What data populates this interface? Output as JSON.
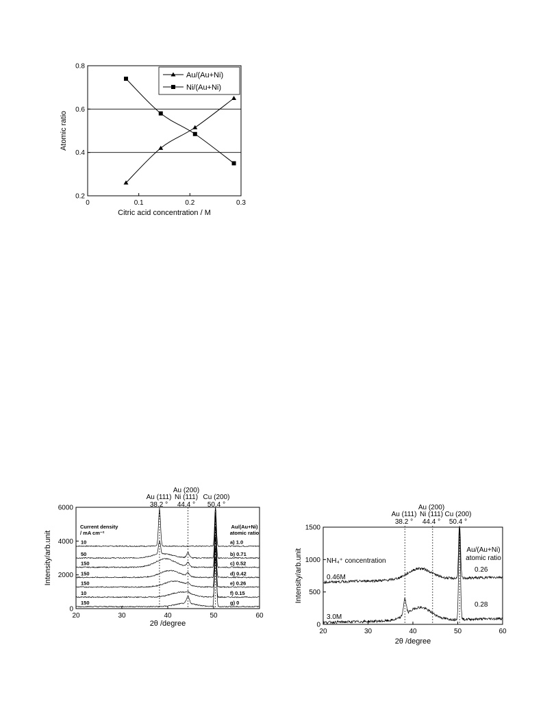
{
  "chart_data": [
    {
      "type": "line",
      "xlabel": "Citric acid concentration / M",
      "ylabel": "Atomic ratio",
      "xlim": [
        0,
        0.3
      ],
      "ylim": [
        0.2,
        0.8
      ],
      "xticks": [
        "0",
        "0.1",
        "0.2",
        "0.3"
      ],
      "yticks": [
        "0.2",
        "0.4",
        "0.6",
        "0.8"
      ],
      "hlines": [
        0.4,
        0.6
      ],
      "legend_position": "top-right",
      "x": [
        0.075,
        0.143,
        0.21,
        0.286
      ],
      "series": [
        {
          "name": "Au/(Au+Ni)",
          "marker": "triangle",
          "values": [
            0.26,
            0.42,
            0.515,
            0.65
          ]
        },
        {
          "name": "Ni/(Au+Ni)",
          "marker": "square",
          "values": [
            0.74,
            0.58,
            0.485,
            0.35
          ]
        }
      ]
    },
    {
      "type": "line",
      "xlabel": "2θ /degree",
      "ylabel": "Intensity/arb.unit",
      "xlim": [
        20,
        60
      ],
      "ylim": [
        0,
        6000
      ],
      "xticks": [
        "20",
        "30",
        "40",
        "50",
        "60"
      ],
      "yticks": [
        "0",
        "2000",
        "4000",
        "6000"
      ],
      "peak_lines": [
        38.2,
        44.4,
        50.4
      ],
      "peak_labels": [
        {
          "name": "Au (111)",
          "angle": "38.2 °"
        },
        {
          "name1": "Au (200)",
          "name2": "Ni (111)",
          "angle": "44.4 °"
        },
        {
          "name": "Cu (200)",
          "angle": "50.4 °"
        }
      ],
      "left_header": [
        "Current density",
        "/ mA cm⁻²"
      ],
      "right_header": [
        "Au/(Au+Ni)",
        "atomic ratio"
      ],
      "series": [
        {
          "current_density": "10",
          "ratio_label": "a) 1.0",
          "baseline": 3700
        },
        {
          "current_density": "50",
          "ratio_label": "b) 0.71",
          "baseline": 3000
        },
        {
          "current_density": "150",
          "ratio_label": "c) 0.52",
          "baseline": 2450
        },
        {
          "current_density": "150",
          "ratio_label": "d) 0.42",
          "baseline": 1850
        },
        {
          "current_density": "150",
          "ratio_label": "e) 0.26",
          "baseline": 1280
        },
        {
          "current_density": "10",
          "ratio_label": "f) 0.15",
          "baseline": 680
        },
        {
          "current_density": "150",
          "ratio_label": "g) 0",
          "baseline": 120
        }
      ]
    },
    {
      "type": "line",
      "xlabel": "2θ /degree",
      "ylabel": "Intensity/arb.unit",
      "xlim": [
        20,
        60
      ],
      "ylim": [
        0,
        1500
      ],
      "xticks": [
        "20",
        "30",
        "40",
        "50",
        "60"
      ],
      "yticks": [
        "0",
        "500",
        "1000",
        "1500"
      ],
      "peak_lines": [
        38.2,
        44.4,
        50.4
      ],
      "peak_labels": [
        {
          "name": "Au (111)",
          "angle": "38.2 °"
        },
        {
          "name1": "Au (200)",
          "name2": "Ni  (111)",
          "angle": "44.4 °"
        },
        {
          "name": "Cu (200)",
          "angle": "50.4 °"
        }
      ],
      "annotation": "NH₄⁺ concentration",
      "right_header": [
        "Au/(Au+Ni)",
        "atomic ratio"
      ],
      "series": [
        {
          "name": "0.46M",
          "ratio_label": "0.26",
          "baseline": 650
        },
        {
          "name": "3.0M",
          "ratio_label": "0.28",
          "baseline": 30
        }
      ]
    }
  ]
}
